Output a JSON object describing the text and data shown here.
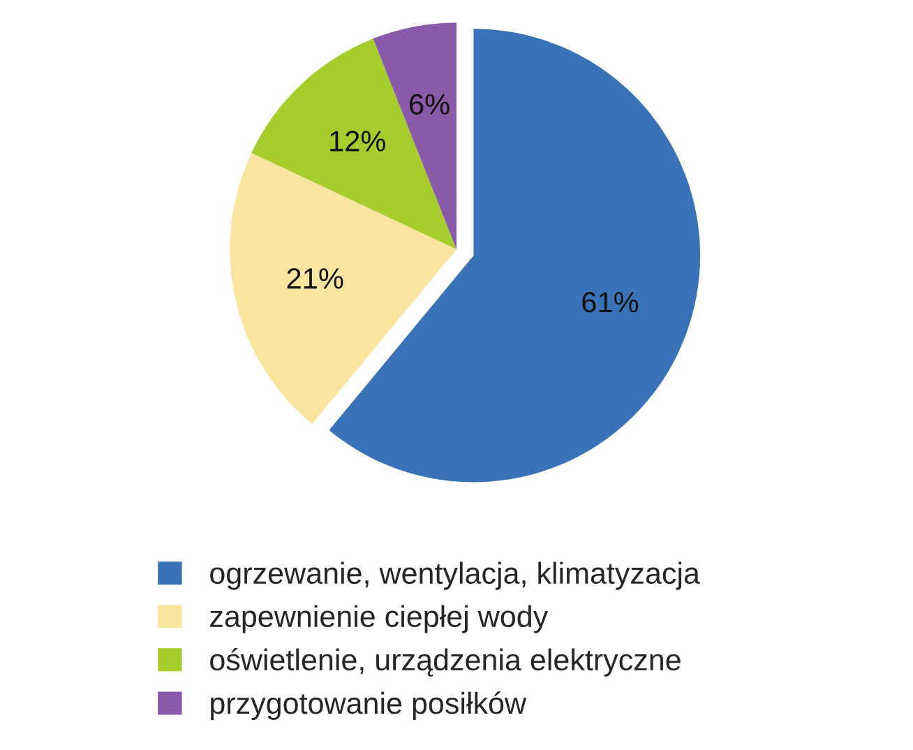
{
  "chart_data": {
    "type": "pie",
    "categories": [
      "ogrzewanie, wentylacja, klimatyzacja",
      "zapewnienie ciepłej wody",
      "oświetlenie, urządzenia elektryczne",
      "przygotowanie posiłków"
    ],
    "values": [
      61,
      21,
      12,
      6
    ],
    "colors": [
      "#3a72b8",
      "#f8e6a0",
      "#a6cc2e",
      "#8a5aa8"
    ],
    "value_labels": [
      "61%",
      "21%",
      "12%",
      "6%"
    ],
    "legend": "bottom"
  }
}
